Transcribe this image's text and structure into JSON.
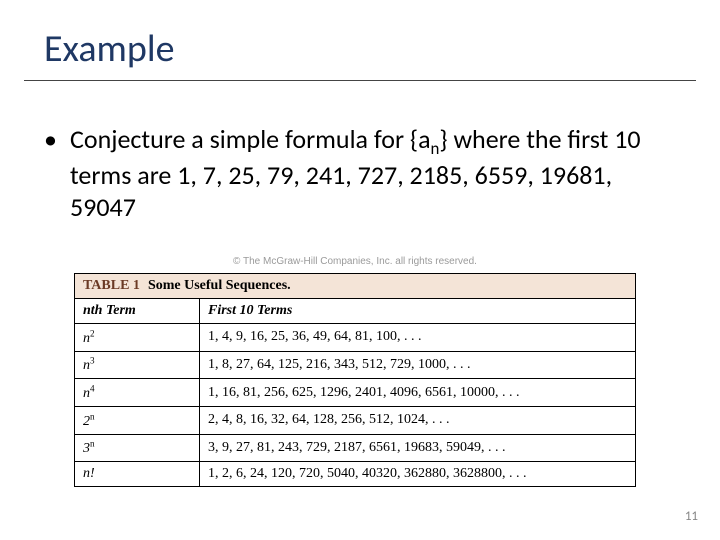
{
  "slide": {
    "title": "Example",
    "page_number": "11"
  },
  "bullet": {
    "marker": "•",
    "line_pre": "Conjecture a simple formula for {a",
    "sub": "n",
    "line_post": "} where the first 10 terms are 1, 7, 25, 79, 241, 727, 2185, 6559, 19681, 59047"
  },
  "figure": {
    "copyright": "© The McGraw-Hill Companies, Inc. all rights reserved.",
    "table_label": "TABLE 1",
    "table_title": "Some Useful Sequences.",
    "col1": "nth Term",
    "col2": "First 10 Terms",
    "rows": [
      {
        "nth_base": "n",
        "nth_exp": "2",
        "terms": "1, 4, 9, 16, 25, 36, 49, 64, 81, 100, . . ."
      },
      {
        "nth_base": "n",
        "nth_exp": "3",
        "terms": "1, 8, 27, 64, 125, 216, 343, 512, 729, 1000, . . ."
      },
      {
        "nth_base": "n",
        "nth_exp": "4",
        "terms": "1, 16, 81, 256, 625, 1296, 2401, 4096, 6561, 10000, . . ."
      },
      {
        "nth_base": "2",
        "nth_exp": "n",
        "terms": "2, 4, 8, 16, 32, 64, 128, 256, 512, 1024, . . ."
      },
      {
        "nth_base": "3",
        "nth_exp": "n",
        "terms": "3, 9, 27, 81, 243, 729, 2187, 6561, 19683, 59049, . . ."
      },
      {
        "nth_base": "n!",
        "nth_exp": "",
        "terms": "1, 2, 6, 24, 120, 720, 5040, 40320, 362880, 3628800, . . ."
      }
    ]
  },
  "colors": {
    "title_color": "#1f3864",
    "caption_bg": "#f4e4d7",
    "badge_color": "#6b3a25",
    "copyright_color": "#9a9a9a"
  }
}
